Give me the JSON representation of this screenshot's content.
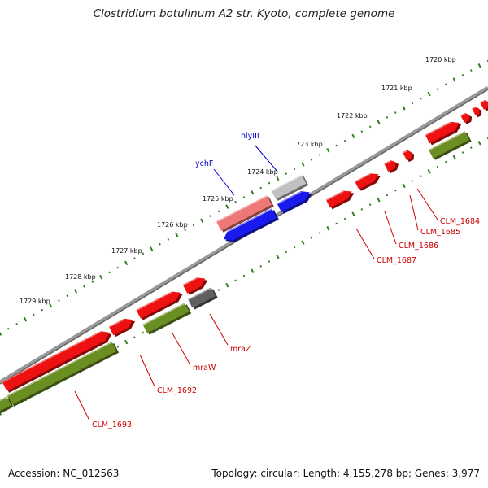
{
  "title": "Clostridium botulinum A2 str. Kyoto, complete genome",
  "footer": {
    "accession": "Accession: NC_012563",
    "summary": "Topology: circular; Length: 4,155,278 bp; Genes: 3,977"
  },
  "colors": {
    "forward_gene": "#ee1111",
    "reverse_gene": "#6b8e23",
    "blue_gene": "#1a1aee",
    "pink_gene": "#ee7777",
    "light_gray_gene": "#c0c0c0",
    "dark_gray_gene": "#606060",
    "backbone": "#888888",
    "tick": "#2e7d1e",
    "red_label": "#cc0000",
    "blue_label": "#0000cc"
  },
  "scale_labels": [
    "1720 kbp",
    "1721 kbp",
    "1722 kbp",
    "1723 kbp",
    "1724 kbp",
    "1725 kbp",
    "1726 kbp",
    "1727 kbp",
    "1728 kbp",
    "1729 kbp"
  ],
  "gene_labels": [
    {
      "text": "CLM_1684",
      "color": "red"
    },
    {
      "text": "CLM_1685",
      "color": "red"
    },
    {
      "text": "CLM_1686",
      "color": "red"
    },
    {
      "text": "CLM_1687",
      "color": "red"
    },
    {
      "text": "mraZ",
      "color": "red"
    },
    {
      "text": "mraW",
      "color": "red"
    },
    {
      "text": "CLM_1692",
      "color": "red"
    },
    {
      "text": "CLM_1693",
      "color": "red"
    },
    {
      "text": "hlyIII",
      "color": "blue"
    },
    {
      "text": "ychF",
      "color": "blue"
    }
  ]
}
